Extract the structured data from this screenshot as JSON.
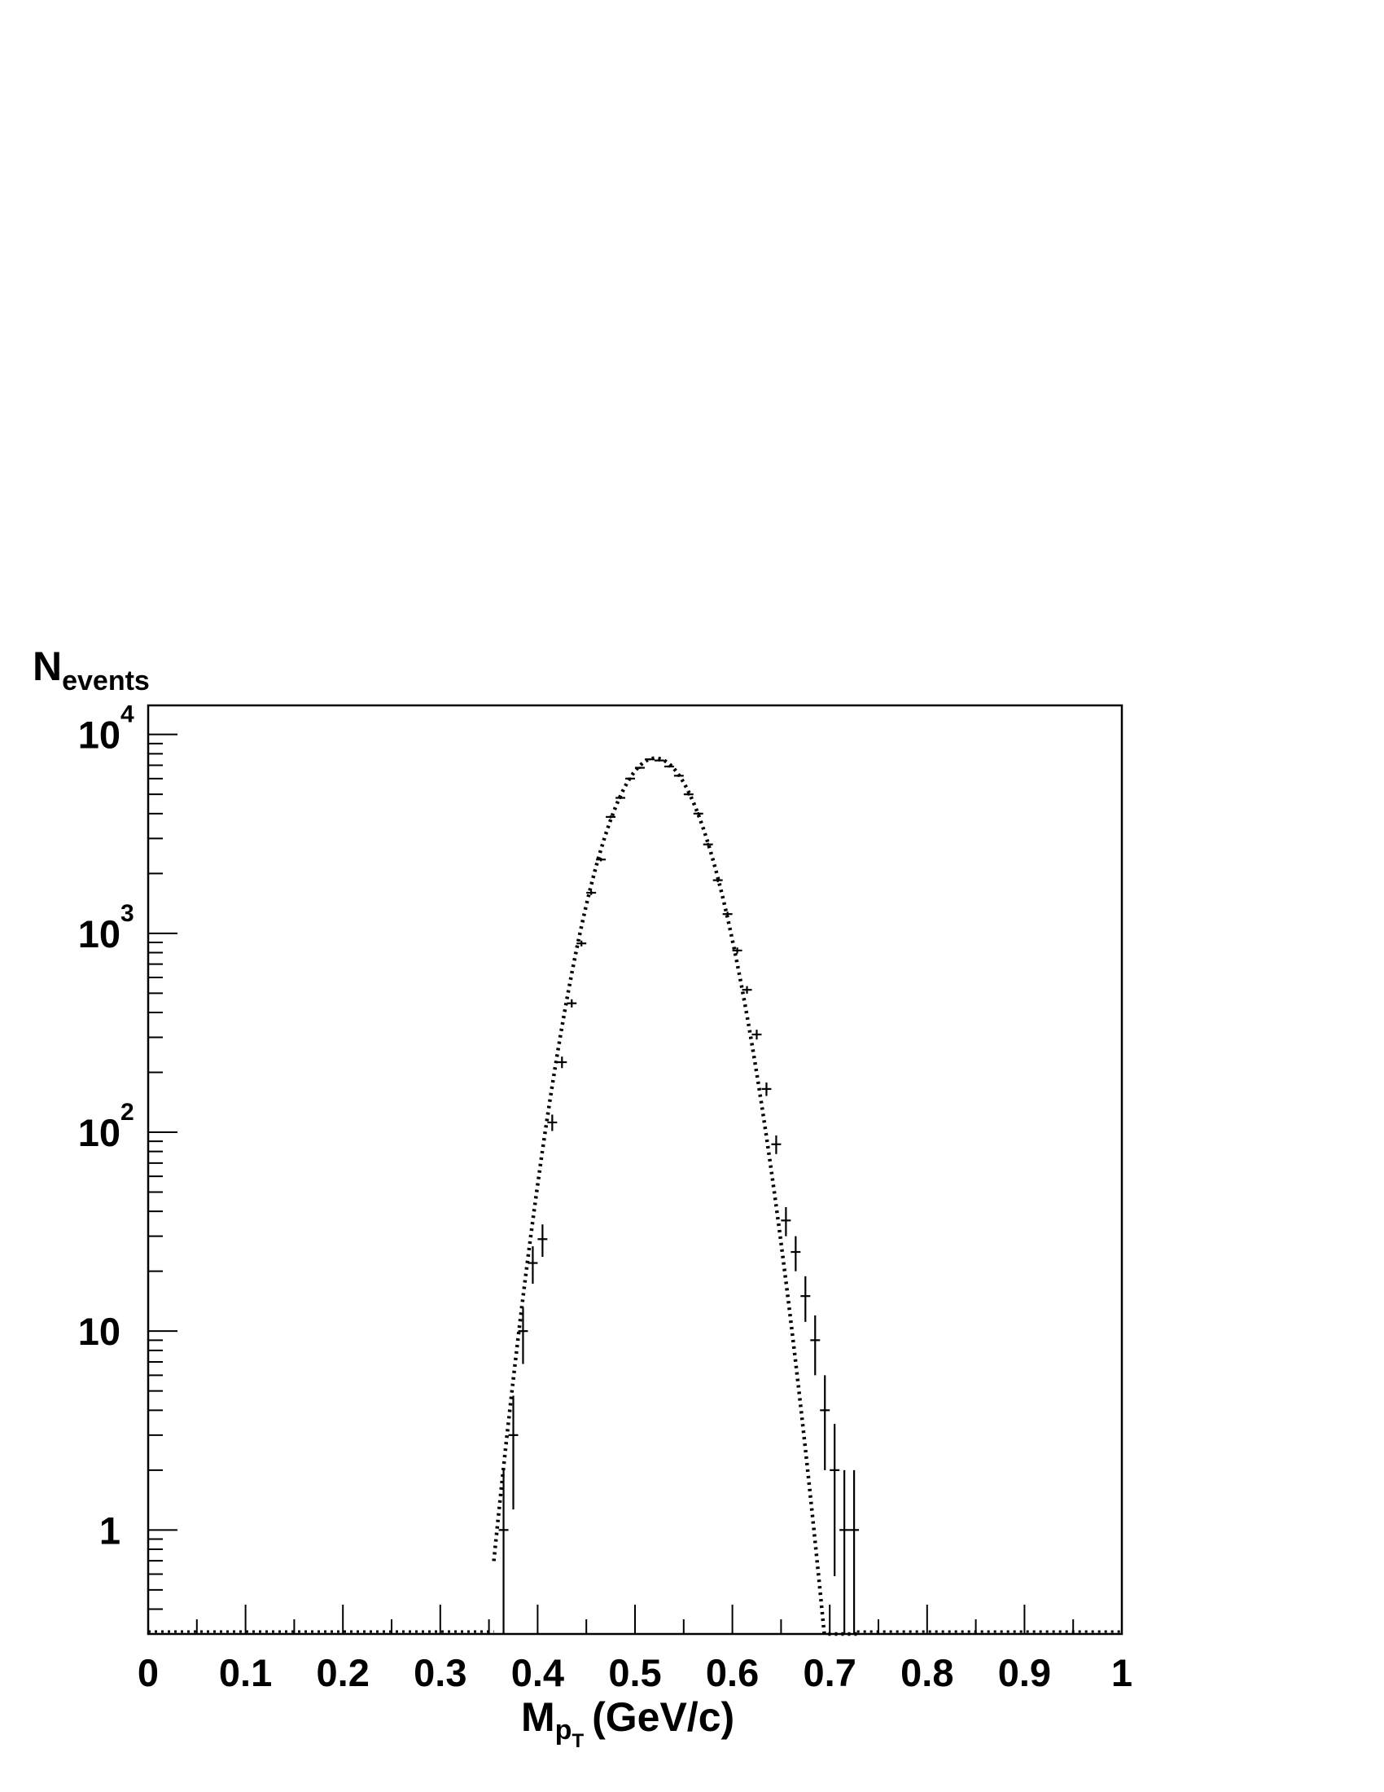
{
  "chart_data": {
    "type": "scatter",
    "title": "",
    "ylabel": {
      "main": "N",
      "sub": "events"
    },
    "xlabel": {
      "main": "M",
      "sub": "p",
      "subsub": "T",
      "unit": "(GeV/c)"
    },
    "xlim": [
      0,
      1
    ],
    "ylim": [
      0.3,
      14000
    ],
    "y_scale": "log",
    "grid": false,
    "legend": "none",
    "x_tick_labels": [
      "0",
      "0.1",
      "0.2",
      "0.3",
      "0.4",
      "0.5",
      "0.6",
      "0.7",
      "0.8",
      "0.9",
      "1"
    ],
    "y_tick_labels": [
      {
        "value": 1,
        "base": "1",
        "exp": ""
      },
      {
        "value": 10,
        "base": "10",
        "exp": ""
      },
      {
        "value": 100,
        "base": "10",
        "exp": "2"
      },
      {
        "value": 1000,
        "base": "10",
        "exp": "3"
      },
      {
        "value": 10000,
        "base": "10",
        "exp": "4"
      }
    ],
    "series": [
      {
        "type": "histogram-errorbars",
        "bin_width": 0.01,
        "x": [
          0.365,
          0.375,
          0.385,
          0.395,
          0.405,
          0.415,
          0.425,
          0.435,
          0.445,
          0.455,
          0.465,
          0.475,
          0.485,
          0.495,
          0.505,
          0.515,
          0.525,
          0.535,
          0.545,
          0.555,
          0.565,
          0.575,
          0.585,
          0.595,
          0.605,
          0.615,
          0.625,
          0.635,
          0.645,
          0.655,
          0.665,
          0.675,
          0.685,
          0.695,
          0.705,
          0.715,
          0.725
        ],
        "y": [
          1,
          3,
          10,
          22,
          29,
          112,
          225,
          445,
          890,
          1600,
          2350,
          3850,
          4800,
          6000,
          6800,
          7500,
          7400,
          6900,
          6200,
          5000,
          4000,
          2800,
          1850,
          1250,
          820,
          520,
          310,
          165,
          87,
          36,
          25,
          15,
          9,
          4,
          2,
          1,
          1
        ]
      },
      {
        "type": "fit-curve",
        "style": "dotted",
        "function": "gaussian",
        "amplitude": 7600,
        "mean": 0.521,
        "sigma": 0.0385,
        "x_range": [
          0.355,
          0.728
        ]
      }
    ]
  }
}
